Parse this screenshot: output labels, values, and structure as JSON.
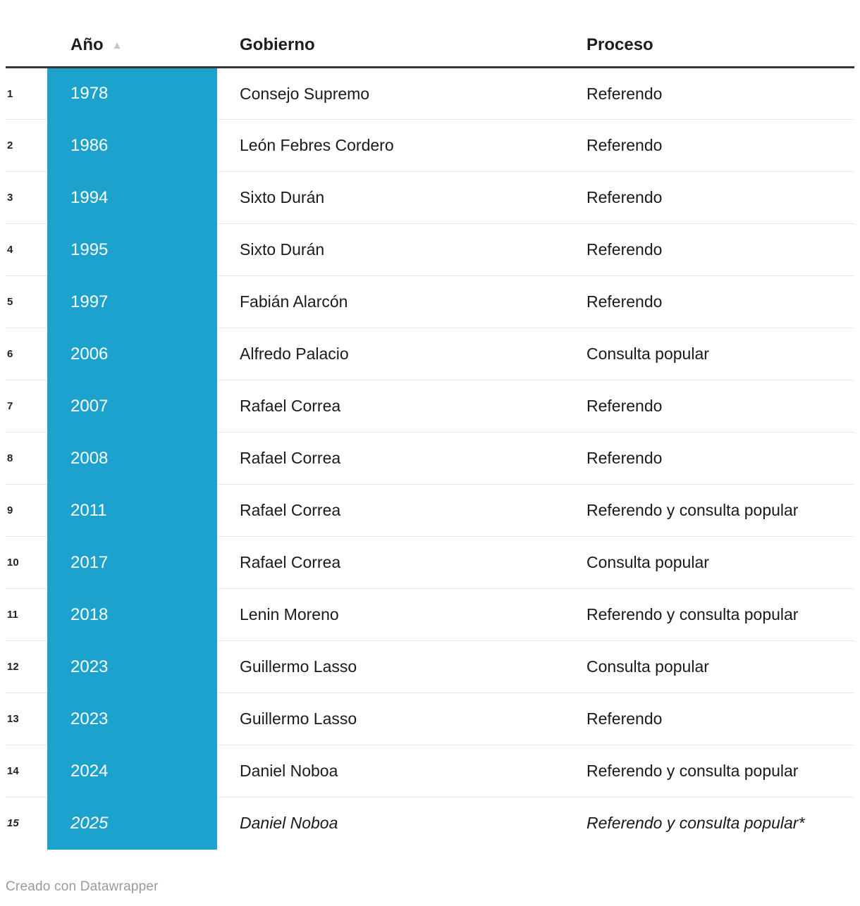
{
  "table": {
    "columns": [
      {
        "label": "Año",
        "sorted": "asc"
      },
      {
        "label": "Gobierno"
      },
      {
        "label": "Proceso"
      }
    ],
    "sort_icon": "▲",
    "rows": [
      {
        "n": "1",
        "year": "1978",
        "gobierno": "Consejo Supremo",
        "proceso": "Referendo",
        "italic": false
      },
      {
        "n": "2",
        "year": "1986",
        "gobierno": "León Febres Cordero",
        "proceso": "Referendo",
        "italic": false
      },
      {
        "n": "3",
        "year": "1994",
        "gobierno": "Sixto Durán",
        "proceso": "Referendo",
        "italic": false
      },
      {
        "n": "4",
        "year": "1995",
        "gobierno": "Sixto Durán",
        "proceso": "Referendo",
        "italic": false
      },
      {
        "n": "5",
        "year": "1997",
        "gobierno": "Fabián Alarcón",
        "proceso": "Referendo",
        "italic": false
      },
      {
        "n": "6",
        "year": "2006",
        "gobierno": "Alfredo Palacio",
        "proceso": "Consulta popular",
        "italic": false
      },
      {
        "n": "7",
        "year": "2007",
        "gobierno": "Rafael Correa",
        "proceso": "Referendo",
        "italic": false
      },
      {
        "n": "8",
        "year": "2008",
        "gobierno": "Rafael Correa",
        "proceso": "Referendo",
        "italic": false
      },
      {
        "n": "9",
        "year": "2011",
        "gobierno": "Rafael Correa",
        "proceso": "Referendo y consulta popular",
        "italic": false
      },
      {
        "n": "10",
        "year": "2017",
        "gobierno": "Rafael Correa",
        "proceso": "Consulta popular",
        "italic": false
      },
      {
        "n": "11",
        "year": "2018",
        "gobierno": "Lenin Moreno",
        "proceso": "Referendo y consulta popular",
        "italic": false
      },
      {
        "n": "12",
        "year": "2023",
        "gobierno": "Guillermo Lasso",
        "proceso": "Consulta popular",
        "italic": false
      },
      {
        "n": "13",
        "year": "2023",
        "gobierno": "Guillermo Lasso",
        "proceso": "Referendo",
        "italic": false
      },
      {
        "n": "14",
        "year": "2024",
        "gobierno": "Daniel Noboa",
        "proceso": "Referendo y consulta popular",
        "italic": false
      },
      {
        "n": "15",
        "year": "2025",
        "gobierno": "Daniel Noboa",
        "proceso": "Referendo y consulta popular*",
        "italic": true
      }
    ],
    "colors": {
      "year_bg": "#1CA2CD",
      "header_rule": "#333333",
      "row_line": "#e7e7e7",
      "sort_icon": "#c4c4c4"
    }
  },
  "footer": {
    "credit": "Creado con Datawrapper"
  }
}
